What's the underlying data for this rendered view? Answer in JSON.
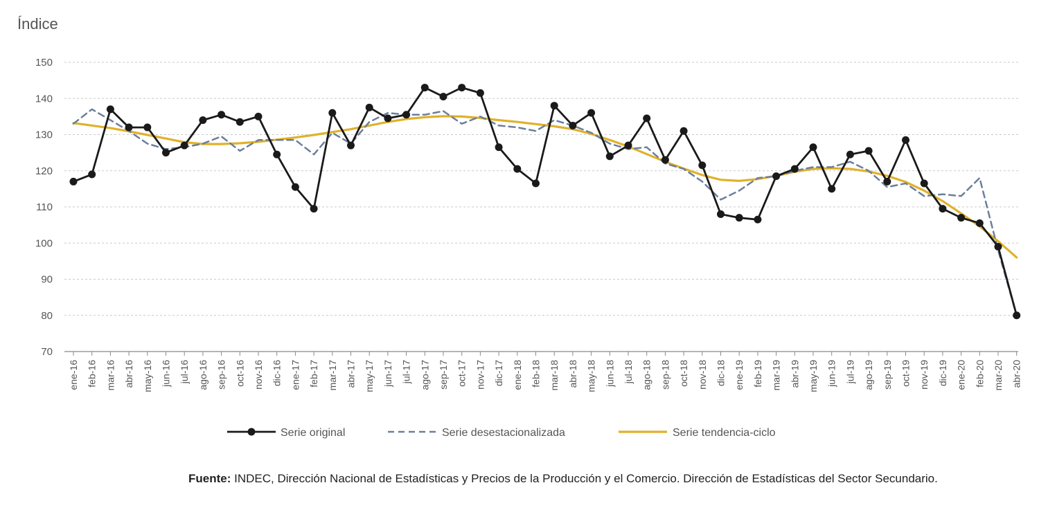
{
  "chart_data": {
    "type": "line",
    "ylabel": "Índice",
    "ylim": [
      70,
      150
    ],
    "yticks": [
      70,
      80,
      90,
      100,
      110,
      120,
      130,
      140,
      150
    ],
    "grid": true,
    "legend_position": "bottom",
    "categories": [
      "ene-16",
      "feb-16",
      "mar-16",
      "abr-16",
      "may-16",
      "jun-16",
      "jul-16",
      "ago-16",
      "sep-16",
      "oct-16",
      "nov-16",
      "dic-16",
      "ene-17",
      "feb-17",
      "mar-17",
      "abr-17",
      "may-17",
      "jun-17",
      "jul-17",
      "ago-17",
      "sep-17",
      "oct-17",
      "nov-17",
      "dic-17",
      "ene-18",
      "feb-18",
      "mar-18",
      "abr-18",
      "may-18",
      "jun-18",
      "jul-18",
      "ago-18",
      "sep-18",
      "oct-18",
      "nov-18",
      "dic-18",
      "ene-19",
      "feb-19",
      "mar-19",
      "abr-19",
      "may-19",
      "jun-19",
      "jul-19",
      "ago-19",
      "sep-19",
      "oct-19",
      "nov-19",
      "dic-19",
      "ene-20",
      "feb-20",
      "mar-20",
      "abr-20"
    ],
    "series": [
      {
        "name": "Serie original",
        "color": "#1a1a1a",
        "style": "solid-markers",
        "values": [
          117,
          119,
          137,
          132,
          132,
          125,
          127,
          134,
          135.5,
          133.5,
          135,
          124.5,
          115.5,
          109.5,
          136,
          127,
          137.5,
          134.5,
          135.5,
          143,
          140.5,
          143,
          141.5,
          126.5,
          120.5,
          116.5,
          138,
          132.5,
          136,
          124,
          127,
          134.5,
          123,
          131,
          121.5,
          108,
          107,
          106.5,
          118.5,
          120.5,
          126.5,
          115,
          124.5,
          125.5,
          117,
          128.5,
          116.5,
          109.5,
          107,
          105.5,
          99,
          80
        ]
      },
      {
        "name": "Serie desestacionalizada",
        "color": "#6a7f9b",
        "style": "dashed",
        "values": [
          133,
          137,
          134,
          131,
          127.5,
          126,
          126.5,
          127.5,
          129.5,
          125.5,
          128.5,
          128.5,
          128.5,
          124.5,
          130.5,
          127.5,
          133.5,
          136,
          135.5,
          135.5,
          136.5,
          133,
          135,
          132.5,
          132,
          131,
          134,
          132.5,
          130.5,
          127.5,
          126,
          126.5,
          122,
          120.5,
          117,
          112,
          114.5,
          118,
          118.5,
          120,
          121,
          121,
          122.5,
          120,
          115.5,
          116.5,
          113,
          113.5,
          113,
          118,
          98,
          80
        ]
      },
      {
        "name": "Serie tendencia-ciclo",
        "color": "#e0b12a",
        "style": "solid",
        "values": [
          133.2,
          132.5,
          131.8,
          130.9,
          129.9,
          128.9,
          127.9,
          127.4,
          127.4,
          127.6,
          128.0,
          128.6,
          129.2,
          129.9,
          130.7,
          131.5,
          132.5,
          133.5,
          134.3,
          134.8,
          135.1,
          135.0,
          134.6,
          134.0,
          133.5,
          132.9,
          132.3,
          131.5,
          130.2,
          128.5,
          126.7,
          124.6,
          122.5,
          120.6,
          118.8,
          117.5,
          117.2,
          117.7,
          118.6,
          119.7,
          120.5,
          120.7,
          120.5,
          119.8,
          118.6,
          116.9,
          114.5,
          111.6,
          108.2,
          104.6,
          100.5,
          96.0
        ]
      }
    ]
  },
  "source": {
    "label": "Fuente:",
    "text": "INDEC, Dirección Nacional de Estadísticas y Precios de la Producción y el Comercio. Dirección de Estadísticas del Sector Secundario."
  }
}
